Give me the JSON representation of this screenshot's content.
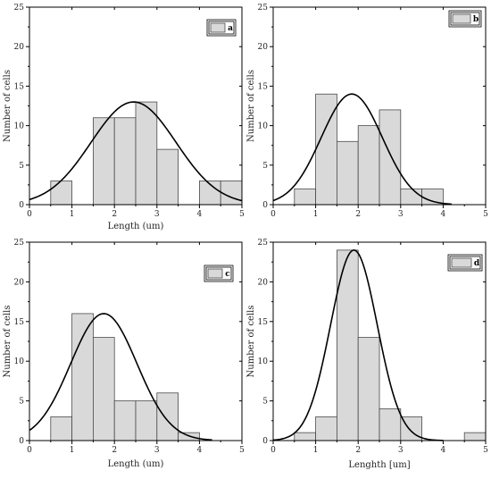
{
  "chart_data": [
    {
      "type": "bar",
      "legend": "a",
      "legend_position": "top-right",
      "xlabel": "Length (um)",
      "ylabel": "Number of cells",
      "xlim": [
        0,
        5
      ],
      "ylim": [
        0,
        25
      ],
      "xticks": [
        0,
        1,
        2,
        3,
        4,
        5
      ],
      "yticks": [
        0,
        5,
        10,
        15,
        20,
        25
      ],
      "bins": [
        {
          "x0": 0.5,
          "x1": 1.0,
          "value": 3
        },
        {
          "x0": 1.5,
          "x1": 2.0,
          "value": 11
        },
        {
          "x0": 2.0,
          "x1": 2.5,
          "value": 11
        },
        {
          "x0": 2.5,
          "x1": 3.0,
          "value": 13
        },
        {
          "x0": 3.0,
          "x1": 3.5,
          "value": 7
        },
        {
          "x0": 4.0,
          "x1": 4.5,
          "value": 3
        },
        {
          "x0": 4.5,
          "x1": 5.0,
          "value": 3
        }
      ],
      "fit_curve": {
        "type": "normal",
        "mean": 2.45,
        "sd": 1.0,
        "peak": 13,
        "x_range": [
          0,
          5
        ]
      }
    },
    {
      "type": "bar",
      "legend": "b",
      "legend_position": "top-right",
      "xlabel": "",
      "ylabel": "Number of cells",
      "xlim": [
        0,
        5
      ],
      "ylim": [
        0,
        25
      ],
      "xticks": [
        0,
        1,
        2,
        3,
        4,
        5
      ],
      "yticks": [
        0,
        5,
        10,
        15,
        20,
        25
      ],
      "bins": [
        {
          "x0": 0.5,
          "x1": 1.0,
          "value": 2
        },
        {
          "x0": 1.0,
          "x1": 1.5,
          "value": 14
        },
        {
          "x0": 1.5,
          "x1": 2.0,
          "value": 8
        },
        {
          "x0": 2.0,
          "x1": 2.5,
          "value": 10
        },
        {
          "x0": 2.5,
          "x1": 3.0,
          "value": 12
        },
        {
          "x0": 3.0,
          "x1": 3.5,
          "value": 2
        },
        {
          "x0": 3.5,
          "x1": 4.0,
          "value": 2
        }
      ],
      "fit_curve": {
        "type": "normal",
        "mean": 1.85,
        "sd": 0.72,
        "peak": 14,
        "x_range": [
          0,
          4.2
        ]
      }
    },
    {
      "type": "bar",
      "legend": "c",
      "legend_position": "top-right",
      "xlabel": "Length (um)",
      "ylabel": "Number of cells",
      "xlim": [
        0,
        5
      ],
      "ylim": [
        0,
        25
      ],
      "xticks": [
        0,
        1,
        2,
        3,
        4,
        5
      ],
      "yticks": [
        0,
        5,
        10,
        15,
        20,
        25
      ],
      "bins": [
        {
          "x0": 0.5,
          "x1": 1.0,
          "value": 3
        },
        {
          "x0": 1.0,
          "x1": 1.5,
          "value": 16
        },
        {
          "x0": 1.5,
          "x1": 2.0,
          "value": 13
        },
        {
          "x0": 2.0,
          "x1": 2.5,
          "value": 5
        },
        {
          "x0": 2.5,
          "x1": 3.0,
          "value": 5
        },
        {
          "x0": 3.0,
          "x1": 3.5,
          "value": 6
        },
        {
          "x0": 3.5,
          "x1": 4.0,
          "value": 1
        }
      ],
      "fit_curve": {
        "type": "normal",
        "mean": 1.75,
        "sd": 0.78,
        "peak": 16,
        "x_range": [
          0,
          4.3
        ]
      }
    },
    {
      "type": "bar",
      "legend": "d",
      "legend_position": "top-right",
      "xlabel": "Lenghth [um]",
      "ylabel": "Number of cells",
      "xlim": [
        0,
        5
      ],
      "ylim": [
        0,
        25
      ],
      "xticks": [
        0,
        1,
        2,
        3,
        4,
        5
      ],
      "yticks": [
        0,
        5,
        10,
        15,
        20,
        25
      ],
      "bins": [
        {
          "x0": 0.5,
          "x1": 1.0,
          "value": 1
        },
        {
          "x0": 1.0,
          "x1": 1.5,
          "value": 3
        },
        {
          "x0": 1.5,
          "x1": 2.0,
          "value": 24
        },
        {
          "x0": 2.0,
          "x1": 2.5,
          "value": 13
        },
        {
          "x0": 2.5,
          "x1": 3.0,
          "value": 4
        },
        {
          "x0": 3.0,
          "x1": 3.5,
          "value": 3
        },
        {
          "x0": 4.5,
          "x1": 5.0,
          "value": 1
        }
      ],
      "fit_curve": {
        "type": "normal",
        "mean": 1.9,
        "sd": 0.55,
        "peak": 24,
        "x_range": [
          0,
          4.0
        ]
      }
    }
  ]
}
